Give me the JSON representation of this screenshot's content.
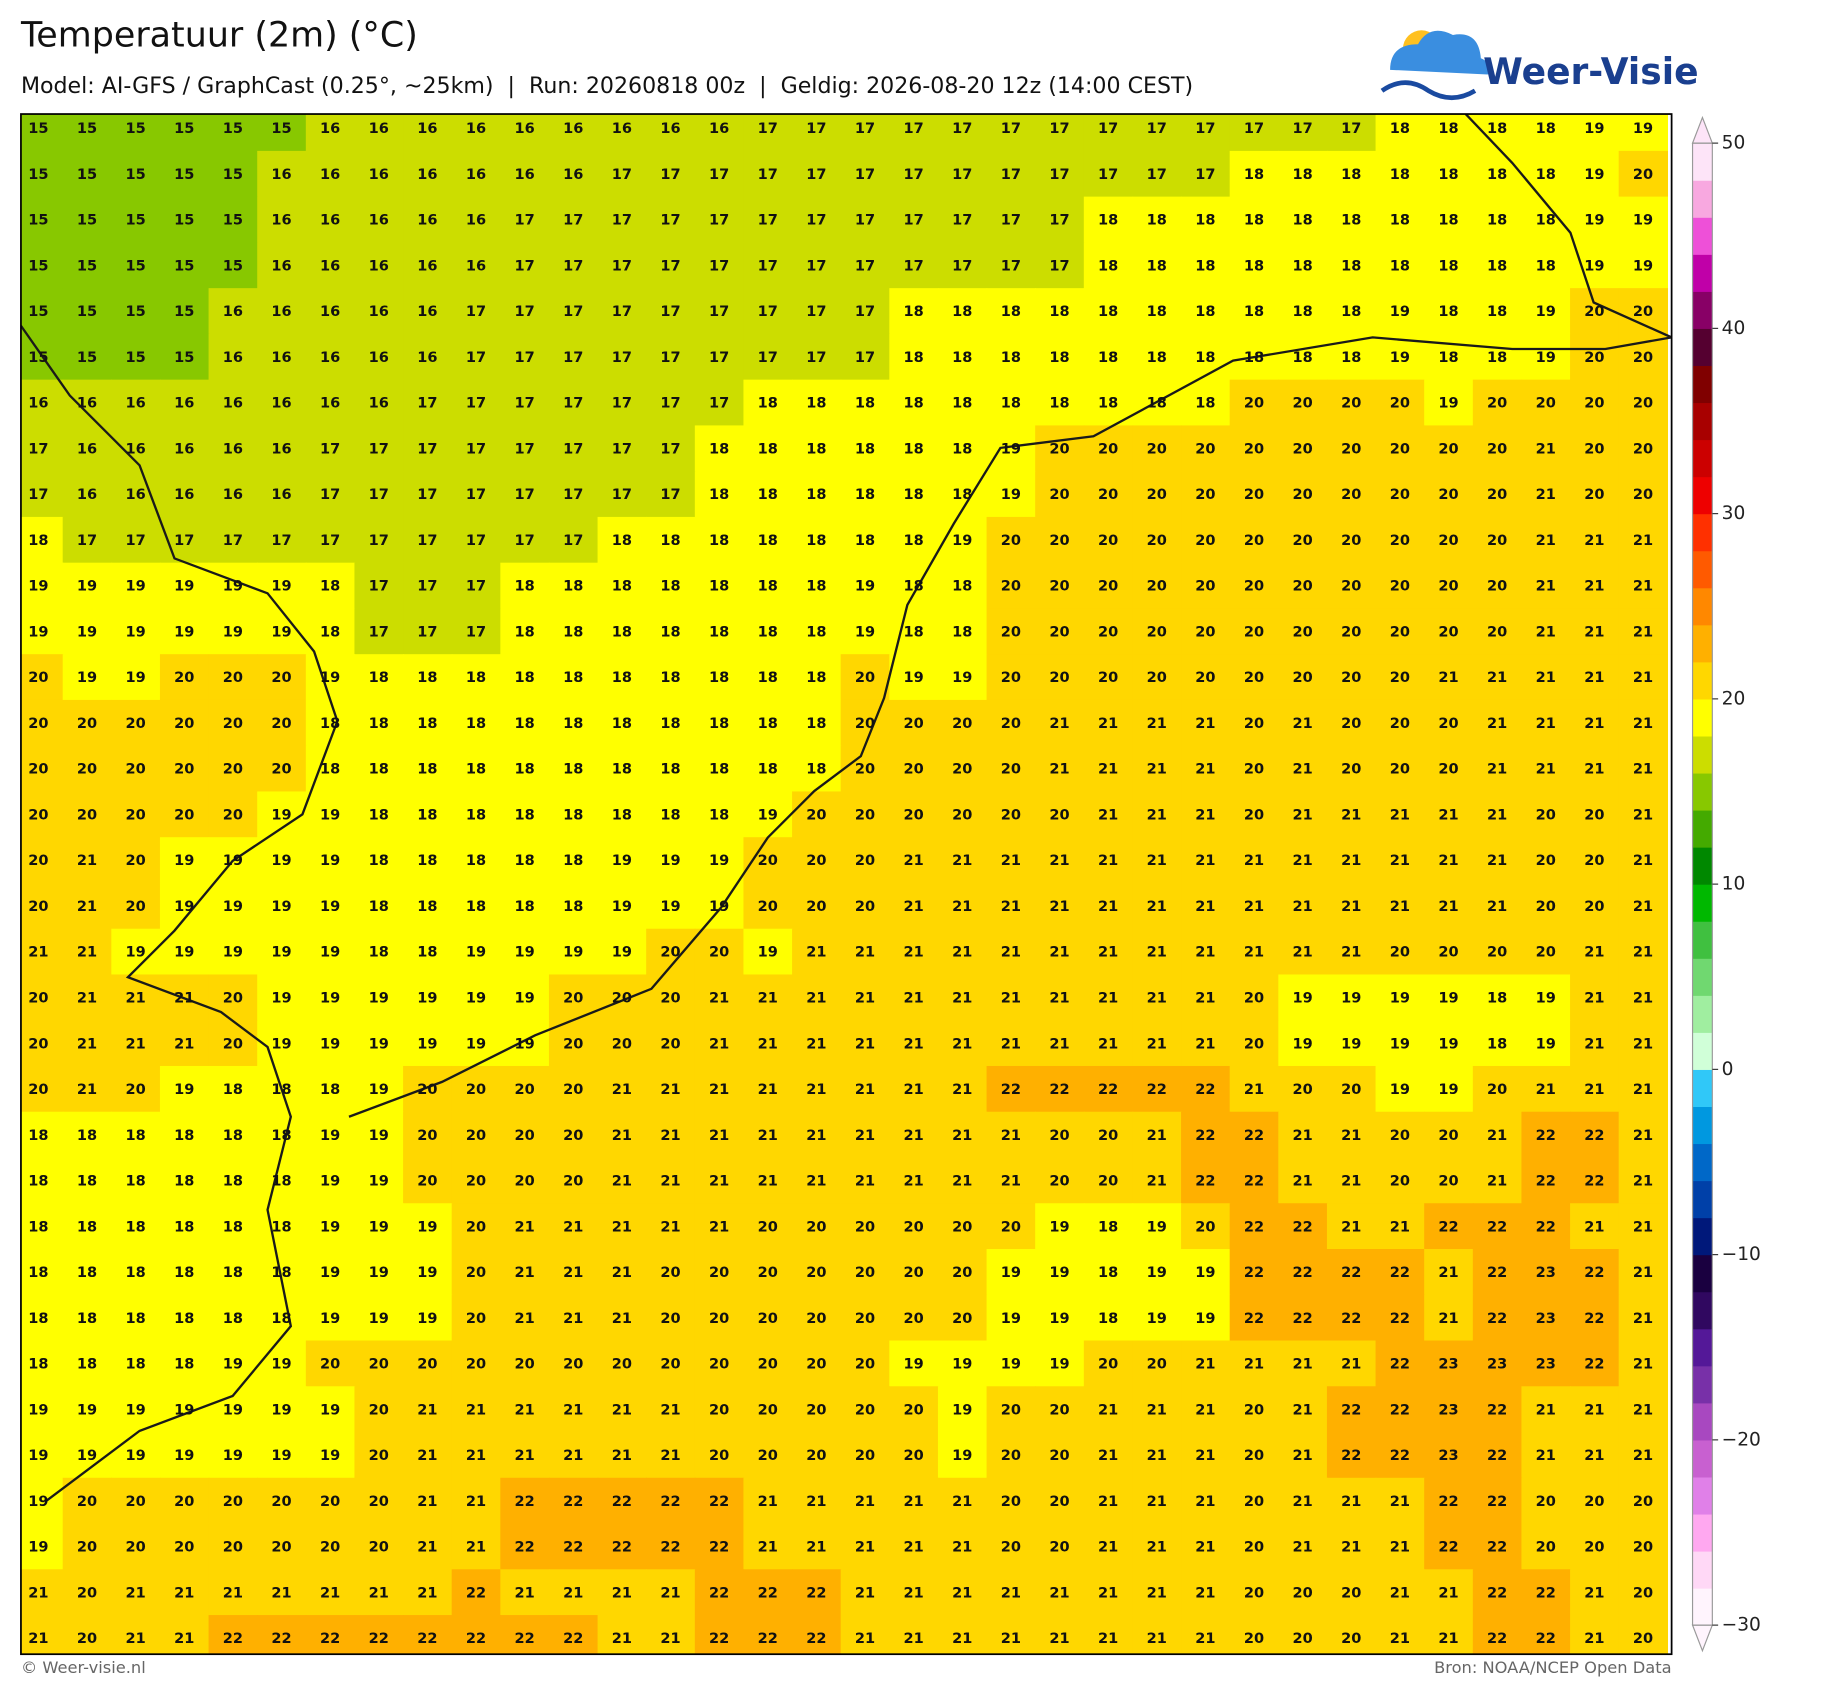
{
  "header": {
    "title": "Temperatuur (2m) (°C)",
    "subtitle": "Model: AI-GFS / GraphCast (0.25°, ~25km)  |  Run: 20260818 00z  |  Geldig: 2026-08-20 12z (14:00 CEST)",
    "logo": "Weer-Visie"
  },
  "map": {
    "grid": [
      [
        15,
        15,
        15,
        15,
        15,
        15,
        16,
        16,
        16,
        16,
        16,
        16,
        16,
        16,
        16,
        17,
        17,
        17,
        17,
        17,
        17,
        17,
        17,
        17,
        17,
        17,
        17,
        17,
        18,
        18,
        18,
        18,
        19,
        19
      ],
      [
        15,
        15,
        15,
        15,
        15,
        16,
        16,
        16,
        16,
        16,
        16,
        16,
        17,
        17,
        17,
        17,
        17,
        17,
        17,
        17,
        17,
        17,
        17,
        17,
        17,
        18,
        18,
        18,
        18,
        18,
        18,
        18,
        19,
        20
      ],
      [
        15,
        15,
        15,
        15,
        15,
        16,
        16,
        16,
        16,
        16,
        17,
        17,
        17,
        17,
        17,
        17,
        17,
        17,
        17,
        17,
        17,
        17,
        18,
        18,
        18,
        18,
        18,
        18,
        18,
        18,
        18,
        18,
        19,
        19
      ],
      [
        15,
        15,
        15,
        15,
        15,
        16,
        16,
        16,
        16,
        16,
        17,
        17,
        17,
        17,
        17,
        17,
        17,
        17,
        17,
        17,
        17,
        17,
        18,
        18,
        18,
        18,
        18,
        18,
        18,
        18,
        18,
        18,
        19,
        19
      ],
      [
        15,
        15,
        15,
        15,
        16,
        16,
        16,
        16,
        16,
        17,
        17,
        17,
        17,
        17,
        17,
        17,
        17,
        17,
        18,
        18,
        18,
        18,
        18,
        18,
        18,
        18,
        18,
        18,
        19,
        18,
        18,
        19,
        20,
        20
      ],
      [
        15,
        15,
        15,
        15,
        16,
        16,
        16,
        16,
        16,
        17,
        17,
        17,
        17,
        17,
        17,
        17,
        17,
        17,
        18,
        18,
        18,
        18,
        18,
        18,
        18,
        18,
        18,
        18,
        19,
        18,
        18,
        19,
        20,
        20
      ],
      [
        16,
        16,
        16,
        16,
        16,
        16,
        16,
        16,
        17,
        17,
        17,
        17,
        17,
        17,
        17,
        18,
        18,
        18,
        18,
        18,
        18,
        18,
        18,
        18,
        18,
        20,
        20,
        20,
        20,
        19,
        20,
        20,
        20,
        20
      ],
      [
        17,
        16,
        16,
        16,
        16,
        16,
        17,
        17,
        17,
        17,
        17,
        17,
        17,
        17,
        18,
        18,
        18,
        18,
        18,
        18,
        19,
        20,
        20,
        20,
        20,
        20,
        20,
        20,
        20,
        20,
        20,
        21,
        20,
        20
      ],
      [
        17,
        16,
        16,
        16,
        16,
        16,
        17,
        17,
        17,
        17,
        17,
        17,
        17,
        17,
        18,
        18,
        18,
        18,
        18,
        18,
        19,
        20,
        20,
        20,
        20,
        20,
        20,
        20,
        20,
        20,
        20,
        21,
        20,
        20
      ],
      [
        18,
        17,
        17,
        17,
        17,
        17,
        17,
        17,
        17,
        17,
        17,
        17,
        18,
        18,
        18,
        18,
        18,
        18,
        18,
        19,
        20,
        20,
        20,
        20,
        20,
        20,
        20,
        20,
        20,
        20,
        20,
        21,
        21,
        21
      ],
      [
        19,
        19,
        19,
        19,
        19,
        19,
        18,
        17,
        17,
        17,
        18,
        18,
        18,
        18,
        18,
        18,
        18,
        19,
        18,
        18,
        20,
        20,
        20,
        20,
        20,
        20,
        20,
        20,
        20,
        20,
        20,
        21,
        21,
        21
      ],
      [
        19,
        19,
        19,
        19,
        19,
        19,
        18,
        17,
        17,
        17,
        18,
        18,
        18,
        18,
        18,
        18,
        18,
        19,
        18,
        18,
        20,
        20,
        20,
        20,
        20,
        20,
        20,
        20,
        20,
        20,
        20,
        21,
        21,
        21
      ],
      [
        20,
        19,
        19,
        20,
        20,
        20,
        19,
        18,
        18,
        18,
        18,
        18,
        18,
        18,
        18,
        18,
        18,
        20,
        19,
        19,
        20,
        20,
        20,
        20,
        20,
        20,
        20,
        20,
        20,
        21,
        21,
        21,
        21,
        21
      ],
      [
        20,
        20,
        20,
        20,
        20,
        20,
        18,
        18,
        18,
        18,
        18,
        18,
        18,
        18,
        18,
        18,
        18,
        20,
        20,
        20,
        20,
        21,
        21,
        21,
        21,
        20,
        21,
        20,
        20,
        20,
        21,
        21,
        21,
        21
      ],
      [
        20,
        20,
        20,
        20,
        20,
        20,
        18,
        18,
        18,
        18,
        18,
        18,
        18,
        18,
        18,
        18,
        18,
        20,
        20,
        20,
        20,
        21,
        21,
        21,
        21,
        20,
        21,
        20,
        20,
        20,
        21,
        21,
        21,
        21
      ],
      [
        20,
        20,
        20,
        20,
        20,
        19,
        19,
        18,
        18,
        18,
        18,
        18,
        18,
        18,
        18,
        19,
        20,
        20,
        20,
        20,
        20,
        20,
        21,
        21,
        21,
        20,
        21,
        21,
        21,
        21,
        21,
        20,
        20,
        21
      ],
      [
        20,
        21,
        20,
        19,
        19,
        19,
        19,
        18,
        18,
        18,
        18,
        18,
        19,
        19,
        19,
        20,
        20,
        20,
        21,
        21,
        21,
        21,
        21,
        21,
        21,
        21,
        21,
        21,
        21,
        21,
        21,
        20,
        20,
        21
      ],
      [
        20,
        21,
        20,
        19,
        19,
        19,
        19,
        18,
        18,
        18,
        18,
        18,
        19,
        19,
        19,
        20,
        20,
        20,
        21,
        21,
        21,
        21,
        21,
        21,
        21,
        21,
        21,
        21,
        21,
        21,
        21,
        20,
        20,
        21
      ],
      [
        21,
        21,
        19,
        19,
        19,
        19,
        19,
        18,
        18,
        19,
        19,
        19,
        19,
        20,
        20,
        19,
        21,
        21,
        21,
        21,
        21,
        21,
        21,
        21,
        21,
        21,
        21,
        21,
        20,
        20,
        20,
        20,
        21,
        21
      ],
      [
        20,
        21,
        21,
        21,
        20,
        19,
        19,
        19,
        19,
        19,
        19,
        20,
        20,
        20,
        21,
        21,
        21,
        21,
        21,
        21,
        21,
        21,
        21,
        21,
        21,
        20,
        19,
        19,
        19,
        19,
        18,
        19,
        21,
        21
      ],
      [
        20,
        21,
        21,
        21,
        20,
        19,
        19,
        19,
        19,
        19,
        19,
        20,
        20,
        20,
        21,
        21,
        21,
        21,
        21,
        21,
        21,
        21,
        21,
        21,
        21,
        20,
        19,
        19,
        19,
        19,
        18,
        19,
        21,
        21
      ],
      [
        20,
        21,
        20,
        19,
        18,
        18,
        18,
        19,
        20,
        20,
        20,
        20,
        21,
        21,
        21,
        21,
        21,
        21,
        21,
        21,
        22,
        22,
        22,
        22,
        22,
        21,
        20,
        20,
        19,
        19,
        20,
        21,
        21,
        21
      ],
      [
        18,
        18,
        18,
        18,
        18,
        18,
        19,
        19,
        20,
        20,
        20,
        20,
        21,
        21,
        21,
        21,
        21,
        21,
        21,
        21,
        21,
        20,
        20,
        21,
        22,
        22,
        21,
        21,
        20,
        20,
        21,
        22,
        22,
        21
      ],
      [
        18,
        18,
        18,
        18,
        18,
        18,
        19,
        19,
        20,
        20,
        20,
        20,
        21,
        21,
        21,
        21,
        21,
        21,
        21,
        21,
        21,
        20,
        20,
        21,
        22,
        22,
        21,
        21,
        20,
        20,
        21,
        22,
        22,
        21
      ],
      [
        18,
        18,
        18,
        18,
        18,
        18,
        19,
        19,
        19,
        20,
        21,
        21,
        21,
        21,
        21,
        20,
        20,
        20,
        20,
        20,
        20,
        19,
        18,
        19,
        20,
        22,
        22,
        21,
        21,
        22,
        22,
        22,
        21,
        21
      ],
      [
        18,
        18,
        18,
        18,
        18,
        18,
        19,
        19,
        19,
        20,
        21,
        21,
        21,
        20,
        20,
        20,
        20,
        20,
        20,
        20,
        19,
        19,
        18,
        19,
        19,
        22,
        22,
        22,
        22,
        21,
        22,
        23,
        22,
        21
      ],
      [
        18,
        18,
        18,
        18,
        18,
        18,
        19,
        19,
        19,
        20,
        21,
        21,
        21,
        20,
        20,
        20,
        20,
        20,
        20,
        20,
        19,
        19,
        18,
        19,
        19,
        22,
        22,
        22,
        22,
        21,
        22,
        23,
        22,
        21
      ],
      [
        18,
        18,
        18,
        18,
        19,
        19,
        20,
        20,
        20,
        20,
        20,
        20,
        20,
        20,
        20,
        20,
        20,
        20,
        19,
        19,
        19,
        19,
        20,
        20,
        21,
        21,
        21,
        21,
        22,
        23,
        23,
        23,
        22,
        21
      ],
      [
        19,
        19,
        19,
        19,
        19,
        19,
        19,
        20,
        21,
        21,
        21,
        21,
        21,
        21,
        20,
        20,
        20,
        20,
        20,
        19,
        20,
        20,
        21,
        21,
        21,
        20,
        21,
        22,
        22,
        23,
        22,
        21,
        21,
        21
      ],
      [
        19,
        19,
        19,
        19,
        19,
        19,
        19,
        20,
        21,
        21,
        21,
        21,
        21,
        21,
        20,
        20,
        20,
        20,
        20,
        19,
        20,
        20,
        21,
        21,
        21,
        20,
        21,
        22,
        22,
        23,
        22,
        21,
        21,
        21
      ],
      [
        19,
        20,
        20,
        20,
        20,
        20,
        20,
        20,
        21,
        21,
        22,
        22,
        22,
        22,
        22,
        21,
        21,
        21,
        21,
        21,
        20,
        20,
        21,
        21,
        21,
        20,
        21,
        21,
        21,
        22,
        22,
        20,
        20,
        20
      ],
      [
        19,
        20,
        20,
        20,
        20,
        20,
        20,
        20,
        21,
        21,
        22,
        22,
        22,
        22,
        22,
        21,
        21,
        21,
        21,
        21,
        20,
        20,
        21,
        21,
        21,
        20,
        21,
        21,
        21,
        22,
        22,
        20,
        20,
        20
      ],
      [
        21,
        20,
        21,
        21,
        21,
        21,
        21,
        21,
        21,
        22,
        21,
        21,
        21,
        21,
        22,
        22,
        22,
        21,
        21,
        21,
        21,
        21,
        21,
        21,
        21,
        20,
        20,
        20,
        21,
        21,
        22,
        22,
        21,
        20
      ],
      [
        21,
        20,
        21,
        21,
        22,
        22,
        22,
        22,
        22,
        22,
        22,
        22,
        21,
        21,
        22,
        22,
        22,
        21,
        21,
        21,
        21,
        21,
        21,
        21,
        21,
        20,
        20,
        20,
        21,
        21,
        22,
        22,
        21,
        20
      ]
    ]
  },
  "colorbar": {
    "lim": [
      -30,
      50
    ],
    "step": 2,
    "ticks": [
      50,
      40,
      30,
      20,
      10,
      0,
      {
        "value": -10,
        "label": "−10"
      },
      {
        "value": -20,
        "label": "−20"
      },
      {
        "value": -30,
        "label": "−30"
      }
    ],
    "colors": [
      "#fff4fd",
      "#ffd8f6",
      "#ffa8f0",
      "#e080e8",
      "#c860d0",
      "#a848c0",
      "#7830a8",
      "#541898",
      "#300860",
      "#1a0040",
      "#00187a",
      "#0040a8",
      "#0068c8",
      "#0098e0",
      "#30c8f8",
      "#d0ffd8",
      "#a0eea0",
      "#70d870",
      "#40c040",
      "#00b800",
      "#008800",
      "#44aa00",
      "#88c800",
      "#ccdd00",
      "#ffff00",
      "#ffd700",
      "#ffb000",
      "#ff8800",
      "#ff5a00",
      "#ff3000",
      "#ee0000",
      "#cc0000",
      "#a80000",
      "#800000",
      "#550030",
      "#880066",
      "#c000a8",
      "#ee50d8",
      "#f8a8e0",
      "#fde4f8"
    ]
  },
  "footer": {
    "left": "© Weer-visie.nl",
    "right": "Bron: NOAA/NCEP Open Data"
  }
}
